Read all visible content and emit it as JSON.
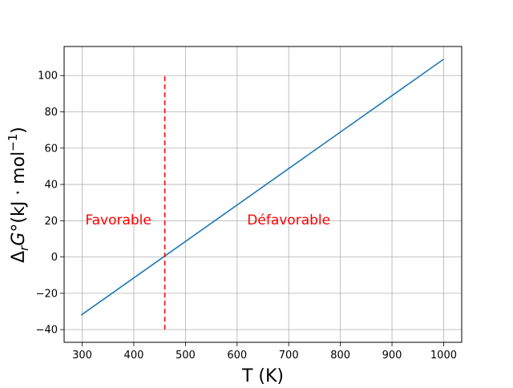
{
  "chart_data": {
    "type": "line",
    "xlabel": "T (K)",
    "ylabel": {
      "delta": "Δ",
      "sub": "r",
      "G": "G",
      "degree": "°",
      "unit_open": "(kJ · mol",
      "exponent": "−1",
      "unit_close": ")"
    },
    "xlim": [
      265,
      1035
    ],
    "ylim": [
      -47,
      116
    ],
    "xticks": [
      300,
      400,
      500,
      600,
      700,
      800,
      900,
      1000
    ],
    "xtick_labels": [
      "300",
      "400",
      "500",
      "600",
      "700",
      "800",
      "900",
      "1000"
    ],
    "yticks": [
      -40,
      -20,
      0,
      20,
      40,
      60,
      80,
      100
    ],
    "ytick_labels": [
      "−40",
      "−20",
      "0",
      "20",
      "40",
      "60",
      "80",
      "100"
    ],
    "grid": true,
    "series": [
      {
        "x": [
          298,
          1000
        ],
        "y": [
          -32,
          109
        ],
        "color": "#1f77b4"
      }
    ],
    "vline": {
      "x": 460,
      "y": [
        -40,
        100
      ],
      "color": "#ff0000",
      "style": "dashed"
    },
    "annotations": [
      {
        "text": "Favorable",
        "x": 370,
        "y": 18,
        "color": "#ff0000"
      },
      {
        "text": "Défavorable",
        "x": 700,
        "y": 18,
        "color": "#ff0000"
      }
    ]
  }
}
